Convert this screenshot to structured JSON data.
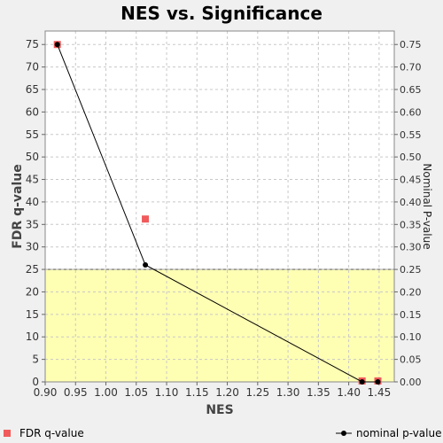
{
  "chart_data": {
    "type": "scatter",
    "title": "NES vs. Significance",
    "xlabel": "NES",
    "ylabel_left": "FDR q-value",
    "ylabel_right": "Nominal P-value",
    "xlim": [
      0.9,
      1.475
    ],
    "ylim_left": [
      0,
      78
    ],
    "ylim_right": [
      0,
      0.78
    ],
    "x_ticks": [
      "0.90",
      "0.95",
      "1.00",
      "1.05",
      "1.10",
      "1.15",
      "1.20",
      "1.25",
      "1.30",
      "1.35",
      "1.40",
      "1.45"
    ],
    "y_left_ticks": [
      "0",
      "5",
      "10",
      "15",
      "20",
      "25",
      "30",
      "35",
      "40",
      "45",
      "50",
      "55",
      "60",
      "65",
      "70",
      "75"
    ],
    "y_right_ticks": [
      "0.00",
      "0.05",
      "0.10",
      "0.15",
      "0.20",
      "0.25",
      "0.30",
      "0.35",
      "0.40",
      "0.45",
      "0.50",
      "0.55",
      "0.60",
      "0.65",
      "0.70",
      "0.75"
    ],
    "grid": true,
    "highlight_band": {
      "y_left_from": 0,
      "y_left_to": 25,
      "color": "#ffffb4"
    },
    "series": [
      {
        "name": "FDR q-value",
        "axis": "left",
        "style": "markers",
        "color": "#f05a5a",
        "x": [
          0.92,
          1.065,
          1.422,
          1.448
        ],
        "y": [
          75,
          36.2,
          0.2,
          0.2
        ]
      },
      {
        "name": "nominal p-value",
        "axis": "right",
        "style": "line-markers",
        "color": "#000000",
        "x": [
          0.92,
          1.065,
          1.422,
          1.448
        ],
        "y": [
          0.75,
          0.26,
          0.0,
          0.0
        ]
      }
    ],
    "legend": {
      "placement": "bottom",
      "items": [
        "FDR q-value",
        "nominal p-value"
      ]
    }
  }
}
